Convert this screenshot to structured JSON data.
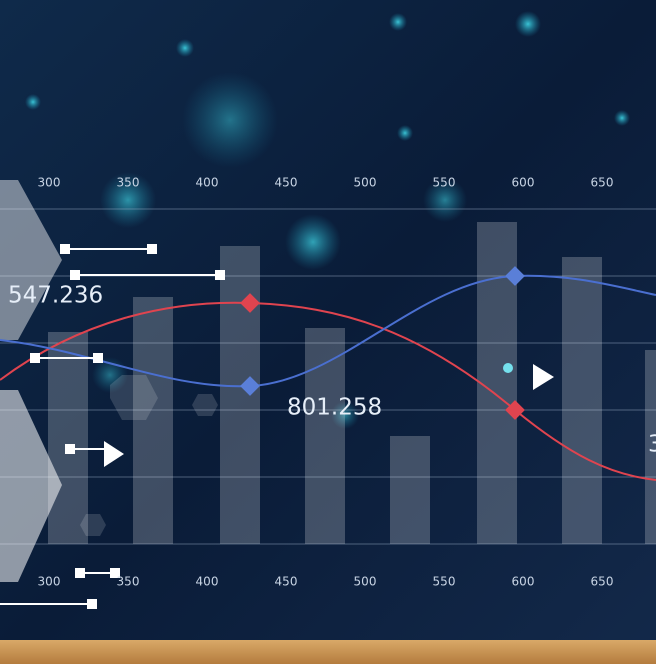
{
  "top_axis": {
    "ticks": [
      300,
      350,
      400,
      450,
      500,
      550,
      600,
      650
    ]
  },
  "bottom_axis": {
    "ticks": [
      300,
      350,
      400,
      450,
      500,
      550,
      600,
      650
    ]
  },
  "labels": [
    "547.236",
    "801.258",
    "3"
  ]
}
